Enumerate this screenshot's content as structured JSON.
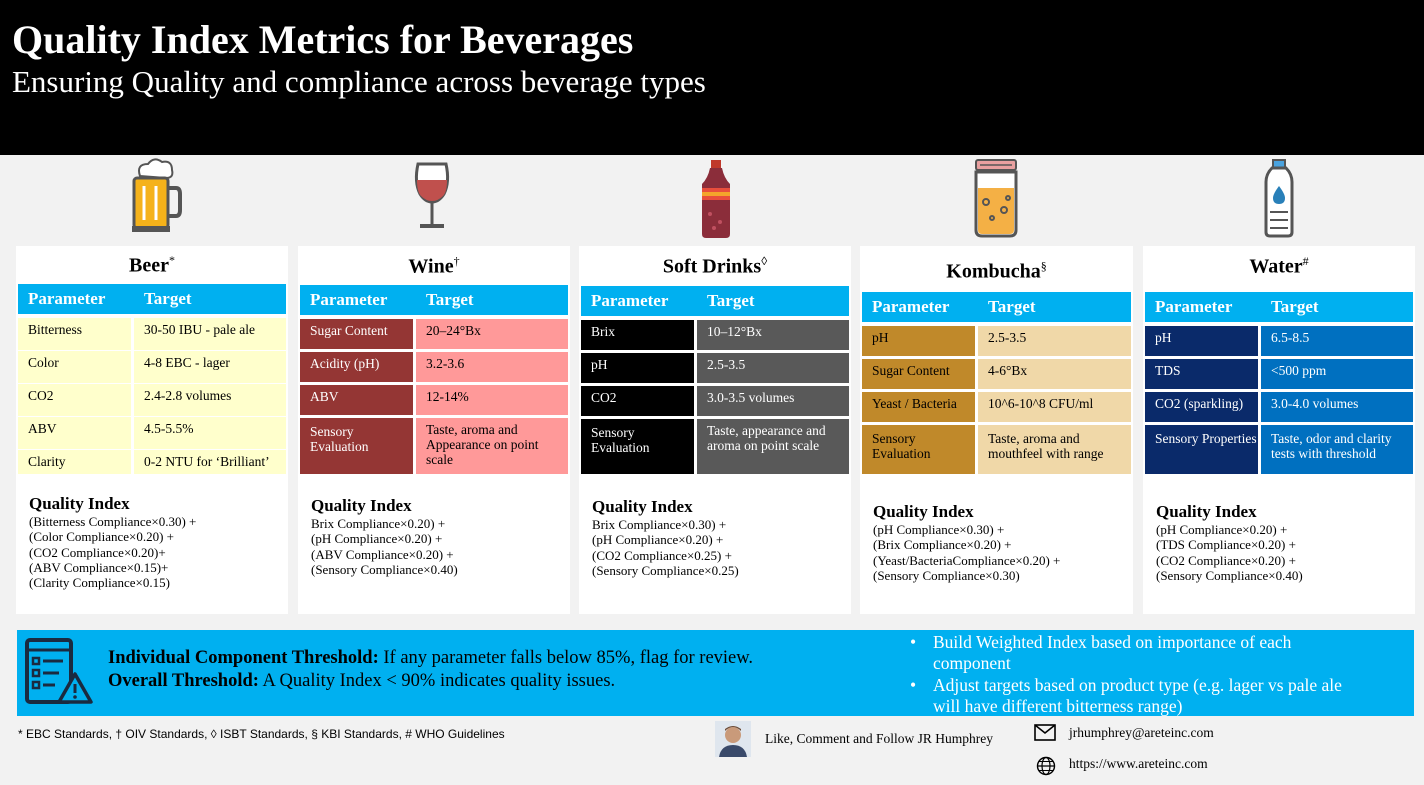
{
  "header": {
    "title": "Quality Index Metrics for Beverages",
    "subtitle": "Ensuring Quality and compliance across beverage types"
  },
  "table_headers": {
    "parameter": "Parameter",
    "target": "Target"
  },
  "qi_title": "Quality Index",
  "cards": [
    {
      "name": "Beer",
      "mark": "*",
      "rows": [
        [
          "Bitterness",
          "30-50 IBU - pale ale"
        ],
        [
          "Color",
          "4-8 EBC - lager"
        ],
        [
          "CO2",
          "2.4-2.8 volumes"
        ],
        [
          "ABV",
          "4.5-5.5%"
        ],
        [
          "Clarity",
          "0-2 NTU for ‘Brilliant’"
        ]
      ],
      "qi": [
        "(Bitterness Compliance×0.30) +",
        "(Color Compliance×0.20) +",
        "(CO2 Compliance×0.20)+",
        "(ABV Compliance×0.15)+",
        "(Clarity Compliance×0.15)"
      ]
    },
    {
      "name": "Wine",
      "mark": "†",
      "rows": [
        [
          "Sugar Content",
          "20–24°Bx"
        ],
        [
          "Acidity (pH)",
          "3.2-3.6"
        ],
        [
          "ABV",
          "12-14%"
        ],
        [
          "Sensory Evaluation",
          "Taste, aroma and Appearance on point scale"
        ]
      ],
      "qi": [
        "Brix Compliance×0.20) +",
        "(pH Compliance×0.20) +",
        "(ABV Compliance×0.20) +",
        "(Sensory Compliance×0.40)"
      ]
    },
    {
      "name": "Soft Drinks",
      "mark": "◊",
      "rows": [
        [
          "Brix",
          "10–12°Bx"
        ],
        [
          "pH",
          "2.5-3.5"
        ],
        [
          "CO2",
          "3.0-3.5 volumes"
        ],
        [
          "Sensory Evaluation",
          "Taste, appearance and aroma on point scale"
        ]
      ],
      "qi": [
        "Brix Compliance×0.30) +",
        "(pH Compliance×0.20) +",
        "(CO2 Compliance×0.25) +",
        "(Sensory Compliance×0.25)"
      ]
    },
    {
      "name": "Kombucha",
      "mark": "§",
      "rows": [
        [
          "pH",
          "2.5-3.5"
        ],
        [
          "Sugar Content",
          "4-6°Bx"
        ],
        [
          "Yeast / Bacteria",
          "10^6-10^8 CFU/ml"
        ],
        [
          "Sensory Evaluation",
          "Taste, aroma and mouthfeel with range"
        ]
      ],
      "qi": [
        "(pH Compliance×0.30) +",
        "(Brix Compliance×0.20) +",
        "(Yeast/BacteriaCompliance×0.20) +",
        "(Sensory Compliance×0.30)"
      ]
    },
    {
      "name": "Water",
      "mark": "#",
      "rows": [
        [
          "pH",
          "6.5-8.5"
        ],
        [
          "TDS",
          "<500 ppm"
        ],
        [
          "CO2 (sparkling)",
          "3.0-4.0 volumes"
        ],
        [
          "Sensory Properties",
          "Taste, odor and clarity tests with threshold"
        ]
      ],
      "qi": [
        "(pH Compliance×0.20) +",
        "(TDS Compliance×0.20) +",
        "(CO2 Compliance×0.20) +",
        "(Sensory Compliance×0.40)"
      ]
    }
  ],
  "banner": {
    "t1_bold": "Individual Component Threshold:",
    "t1": " If any parameter falls below 85%, flag for review.",
    "t2_bold": "Overall Threshold:",
    "t2": " A Quality Index < 90% indicates quality issues.",
    "bullets": [
      "Build Weighted Index based on importance of each component",
      "Adjust targets based on product type (e.g. lager vs pale ale will have different bitterness range)"
    ]
  },
  "footer": {
    "standards": "* EBC Standards, † OIV Standards, ◊ ISBT Standards, § KBI Standards, # WHO Guidelines",
    "follow": "Like, Comment and Follow JR Humphrey",
    "email": "jrhumphrey@areteinc.com",
    "website": "https://www.areteinc.com"
  },
  "colors": {
    "accent": "#00b0f0",
    "beer": "#ffffcc",
    "wine_dark": "#943634",
    "wine_light": "#ff9999",
    "soft_dark": "#000000",
    "soft_light": "#595959",
    "kombucha_dark": "#c0892a",
    "kombucha_light": "#f0d8a8",
    "water_dark": "#0a2a6a",
    "water_light": "#0070c0"
  }
}
